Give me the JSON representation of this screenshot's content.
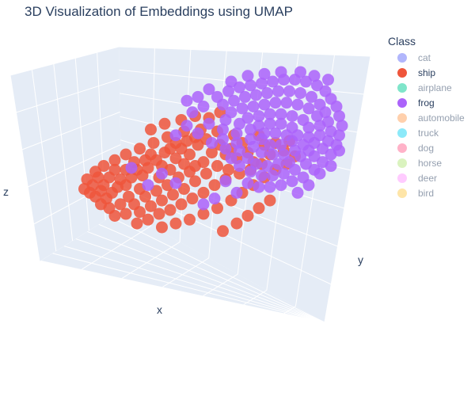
{
  "chart_data": {
    "type": "scatter",
    "title": "3D Visualization of Embeddings using UMAP",
    "xlabel": "x",
    "ylabel": "y",
    "zlabel": "z",
    "grid": true,
    "legend_placement": "top-right",
    "legend": {
      "title": "Class",
      "entries": [
        {
          "name": "cat",
          "color": "#636efa",
          "visible": false
        },
        {
          "name": "ship",
          "color": "#ef553b",
          "visible": true
        },
        {
          "name": "airplane",
          "color": "#00cc96",
          "visible": false
        },
        {
          "name": "frog",
          "color": "#ab63fa",
          "visible": true
        },
        {
          "name": "automobile",
          "color": "#ffa15a",
          "visible": false
        },
        {
          "name": "truck",
          "color": "#19d3f3",
          "visible": false
        },
        {
          "name": "dog",
          "color": "#ff6692",
          "visible": false
        },
        {
          "name": "horse",
          "color": "#b6e880",
          "visible": false
        },
        {
          "name": "deer",
          "color": "#ff97ff",
          "visible": false
        },
        {
          "name": "bird",
          "color": "#fecb52",
          "visible": false
        }
      ]
    },
    "series": [
      {
        "name": "ship",
        "color": "#ef553b",
        "points": [
          [
            0.09,
            0.7
          ],
          [
            0.11,
            0.72
          ],
          [
            0.13,
            0.69
          ],
          [
            0.15,
            0.73
          ],
          [
            0.1,
            0.66
          ],
          [
            0.14,
            0.66
          ],
          [
            0.17,
            0.7
          ],
          [
            0.19,
            0.67
          ],
          [
            0.12,
            0.62
          ],
          [
            0.16,
            0.62
          ],
          [
            0.2,
            0.63
          ],
          [
            0.22,
            0.66
          ],
          [
            0.24,
            0.62
          ],
          [
            0.18,
            0.58
          ],
          [
            0.22,
            0.58
          ],
          [
            0.26,
            0.58
          ],
          [
            0.28,
            0.61
          ],
          [
            0.3,
            0.57
          ],
          [
            0.25,
            0.54
          ],
          [
            0.29,
            0.53
          ],
          [
            0.33,
            0.53
          ],
          [
            0.35,
            0.56
          ],
          [
            0.31,
            0.5
          ],
          [
            0.36,
            0.49
          ],
          [
            0.4,
            0.52
          ],
          [
            0.38,
            0.47
          ],
          [
            0.42,
            0.47
          ],
          [
            0.45,
            0.5
          ],
          [
            0.4,
            0.44
          ],
          [
            0.44,
            0.43
          ],
          [
            0.48,
            0.45
          ],
          [
            0.47,
            0.41
          ],
          [
            0.51,
            0.42
          ],
          [
            0.43,
            0.55
          ],
          [
            0.47,
            0.56
          ],
          [
            0.38,
            0.58
          ],
          [
            0.34,
            0.62
          ],
          [
            0.27,
            0.68
          ],
          [
            0.23,
            0.72
          ],
          [
            0.2,
            0.76
          ],
          [
            0.16,
            0.78
          ],
          [
            0.13,
            0.76
          ],
          [
            0.25,
            0.76
          ],
          [
            0.29,
            0.72
          ],
          [
            0.33,
            0.69
          ],
          [
            0.37,
            0.66
          ],
          [
            0.41,
            0.62
          ],
          [
            0.45,
            0.59
          ],
          [
            0.5,
            0.54
          ],
          [
            0.53,
            0.49
          ],
          [
            0.56,
            0.45
          ],
          [
            0.58,
            0.5
          ],
          [
            0.55,
            0.56
          ],
          [
            0.51,
            0.6
          ],
          [
            0.47,
            0.64
          ],
          [
            0.43,
            0.68
          ],
          [
            0.39,
            0.71
          ],
          [
            0.35,
            0.74
          ],
          [
            0.31,
            0.77
          ],
          [
            0.27,
            0.8
          ],
          [
            0.22,
            0.81
          ],
          [
            0.18,
            0.82
          ],
          [
            0.6,
            0.47
          ],
          [
            0.62,
            0.52
          ],
          [
            0.59,
            0.58
          ],
          [
            0.64,
            0.44
          ],
          [
            0.66,
            0.49
          ],
          [
            0.68,
            0.54
          ],
          [
            0.61,
            0.4
          ],
          [
            0.55,
            0.38
          ],
          [
            0.49,
            0.37
          ],
          [
            0.43,
            0.38
          ],
          [
            0.37,
            0.41
          ],
          [
            0.32,
            0.44
          ],
          [
            0.27,
            0.47
          ],
          [
            0.22,
            0.5
          ],
          [
            0.18,
            0.53
          ],
          [
            0.14,
            0.56
          ],
          [
            0.11,
            0.59
          ],
          [
            0.08,
            0.63
          ],
          [
            0.07,
            0.68
          ],
          [
            0.26,
            0.86
          ],
          [
            0.3,
            0.84
          ],
          [
            0.34,
            0.81
          ],
          [
            0.38,
            0.79
          ],
          [
            0.42,
            0.76
          ],
          [
            0.46,
            0.73
          ],
          [
            0.5,
            0.7
          ],
          [
            0.54,
            0.66
          ],
          [
            0.58,
            0.63
          ],
          [
            0.63,
            0.6
          ],
          [
            0.67,
            0.58
          ],
          [
            0.71,
            0.55
          ],
          [
            0.74,
            0.5
          ],
          [
            0.72,
            0.45
          ],
          [
            0.7,
            0.4
          ],
          [
            0.52,
            0.31
          ],
          [
            0.56,
            0.28
          ],
          [
            0.47,
            0.3
          ],
          [
            0.42,
            0.32
          ],
          [
            0.36,
            0.34
          ],
          [
            0.31,
            0.37
          ],
          [
            0.76,
            0.44
          ],
          [
            0.79,
            0.48
          ],
          [
            0.81,
            0.43
          ],
          [
            0.35,
            0.88
          ],
          [
            0.4,
            0.86
          ],
          [
            0.45,
            0.84
          ],
          [
            0.5,
            0.81
          ],
          [
            0.55,
            0.78
          ],
          [
            0.6,
            0.74
          ],
          [
            0.64,
            0.7
          ],
          [
            0.68,
            0.66
          ],
          [
            0.72,
            0.62
          ],
          [
            0.76,
            0.58
          ],
          [
            0.8,
            0.55
          ],
          [
            0.83,
            0.51
          ],
          [
            0.57,
            0.9
          ],
          [
            0.62,
            0.86
          ],
          [
            0.66,
            0.82
          ],
          [
            0.7,
            0.78
          ],
          [
            0.74,
            0.74
          ]
        ]
      },
      {
        "name": "frog",
        "color": "#ab63fa",
        "points": [
          [
            0.55,
            0.2
          ],
          [
            0.59,
            0.17
          ],
          [
            0.63,
            0.15
          ],
          [
            0.67,
            0.14
          ],
          [
            0.71,
            0.13
          ],
          [
            0.75,
            0.12
          ],
          [
            0.79,
            0.11
          ],
          [
            0.83,
            0.11
          ],
          [
            0.87,
            0.12
          ],
          [
            0.91,
            0.14
          ],
          [
            0.94,
            0.17
          ],
          [
            0.96,
            0.21
          ],
          [
            0.98,
            0.25
          ],
          [
            0.99,
            0.3
          ],
          [
            1.0,
            0.35
          ],
          [
            0.99,
            0.4
          ],
          [
            0.98,
            0.45
          ],
          [
            0.96,
            0.5
          ],
          [
            0.93,
            0.54
          ],
          [
            0.9,
            0.58
          ],
          [
            0.86,
            0.62
          ],
          [
            0.82,
            0.64
          ],
          [
            0.78,
            0.66
          ],
          [
            0.74,
            0.67
          ],
          [
            0.7,
            0.67
          ],
          [
            0.66,
            0.65
          ],
          [
            0.57,
            0.24
          ],
          [
            0.61,
            0.22
          ],
          [
            0.65,
            0.2
          ],
          [
            0.69,
            0.19
          ],
          [
            0.73,
            0.18
          ],
          [
            0.77,
            0.17
          ],
          [
            0.81,
            0.17
          ],
          [
            0.85,
            0.18
          ],
          [
            0.89,
            0.2
          ],
          [
            0.92,
            0.24
          ],
          [
            0.94,
            0.28
          ],
          [
            0.95,
            0.33
          ],
          [
            0.96,
            0.38
          ],
          [
            0.95,
            0.43
          ],
          [
            0.93,
            0.47
          ],
          [
            0.9,
            0.51
          ],
          [
            0.87,
            0.55
          ],
          [
            0.83,
            0.58
          ],
          [
            0.79,
            0.6
          ],
          [
            0.75,
            0.61
          ],
          [
            0.71,
            0.61
          ],
          [
            0.67,
            0.59
          ],
          [
            0.63,
            0.56
          ],
          [
            0.6,
            0.52
          ],
          [
            0.58,
            0.47
          ],
          [
            0.57,
            0.42
          ],
          [
            0.57,
            0.37
          ],
          [
            0.58,
            0.32
          ],
          [
            0.6,
            0.28
          ],
          [
            0.64,
            0.26
          ],
          [
            0.68,
            0.25
          ],
          [
            0.72,
            0.24
          ],
          [
            0.76,
            0.23
          ],
          [
            0.8,
            0.23
          ],
          [
            0.84,
            0.24
          ],
          [
            0.88,
            0.26
          ],
          [
            0.91,
            0.3
          ],
          [
            0.92,
            0.35
          ],
          [
            0.92,
            0.4
          ],
          [
            0.9,
            0.44
          ],
          [
            0.88,
            0.48
          ],
          [
            0.85,
            0.51
          ],
          [
            0.81,
            0.54
          ],
          [
            0.77,
            0.55
          ],
          [
            0.73,
            0.56
          ],
          [
            0.69,
            0.55
          ],
          [
            0.66,
            0.52
          ],
          [
            0.63,
            0.48
          ],
          [
            0.62,
            0.44
          ],
          [
            0.62,
            0.39
          ],
          [
            0.63,
            0.34
          ],
          [
            0.66,
            0.31
          ],
          [
            0.7,
            0.3
          ],
          [
            0.74,
            0.29
          ],
          [
            0.78,
            0.29
          ],
          [
            0.82,
            0.3
          ],
          [
            0.86,
            0.32
          ],
          [
            0.88,
            0.36
          ],
          [
            0.88,
            0.41
          ],
          [
            0.86,
            0.45
          ],
          [
            0.83,
            0.48
          ],
          [
            0.79,
            0.5
          ],
          [
            0.75,
            0.5
          ],
          [
            0.71,
            0.49
          ],
          [
            0.68,
            0.46
          ],
          [
            0.67,
            0.42
          ],
          [
            0.67,
            0.37
          ],
          [
            0.7,
            0.35
          ],
          [
            0.74,
            0.34
          ],
          [
            0.78,
            0.34
          ],
          [
            0.82,
            0.36
          ],
          [
            0.84,
            0.4
          ],
          [
            0.82,
            0.43
          ],
          [
            0.78,
            0.45
          ],
          [
            0.74,
            0.45
          ],
          [
            0.71,
            0.42
          ],
          [
            0.72,
            0.39
          ],
          [
            0.76,
            0.39
          ],
          [
            0.8,
            0.4
          ],
          [
            0.5,
            0.25
          ],
          [
            0.46,
            0.28
          ],
          [
            0.52,
            0.34
          ],
          [
            0.48,
            0.39
          ],
          [
            0.44,
            0.35
          ],
          [
            0.4,
            0.4
          ],
          [
            0.53,
            0.44
          ],
          [
            0.58,
            0.64
          ],
          [
            0.62,
            0.7
          ],
          [
            0.54,
            0.73
          ],
          [
            0.5,
            0.76
          ],
          [
            0.4,
            0.65
          ],
          [
            0.35,
            0.6
          ],
          [
            0.3,
            0.66
          ],
          [
            0.24,
            0.57
          ],
          [
            0.92,
            0.6
          ],
          [
            0.88,
            0.66
          ],
          [
            0.84,
            0.7
          ],
          [
            0.96,
            0.56
          ],
          [
            0.99,
            0.48
          ],
          [
            0.52,
            0.16
          ],
          [
            0.48,
            0.2
          ],
          [
            0.44,
            0.22
          ],
          [
            0.6,
            0.12
          ],
          [
            0.66,
            0.09
          ],
          [
            0.72,
            0.08
          ],
          [
            0.78,
            0.07
          ],
          [
            0.85,
            0.07
          ],
          [
            0.9,
            0.09
          ],
          [
            0.95,
            0.11
          ]
        ]
      }
    ]
  }
}
